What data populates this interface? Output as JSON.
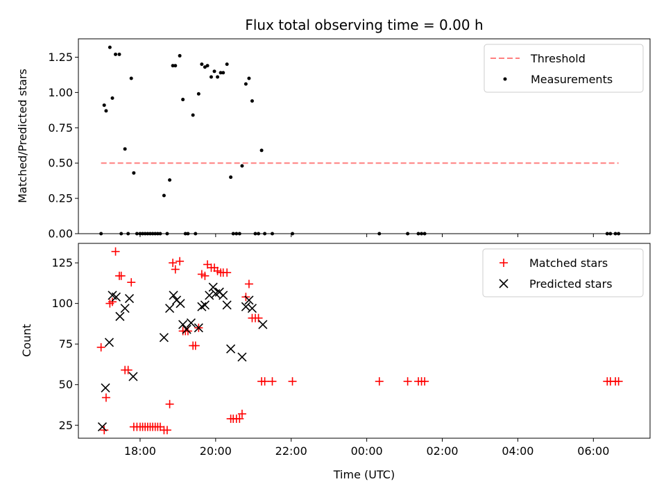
{
  "chart_data": [
    {
      "type": "scatter",
      "title": "Flux total observing time = 0.00 h",
      "ylabel": "Matched/Predicted stars",
      "xlabel": "",
      "ylim": [
        0,
        1.38
      ],
      "xlim": [
        "16:22",
        "07:30"
      ],
      "yticks": [
        "0.00",
        "0.25",
        "0.50",
        "0.75",
        "1.00",
        "1.25"
      ],
      "ytick_values": [
        0,
        0.25,
        0.5,
        0.75,
        1.0,
        1.25
      ],
      "legend": {
        "placement": "upper right",
        "entries": [
          "Threshold",
          "Measurements"
        ]
      },
      "threshold": {
        "name": "Threshold",
        "value": 0.5,
        "x_start": "16:58",
        "x_end": "06:40",
        "color": "#ff7f7f"
      },
      "series": [
        {
          "name": "Measurements",
          "color": "#000000",
          "points": [
            [
              "16:58",
              0.0
            ],
            [
              "17:03",
              0.91
            ],
            [
              "17:06",
              0.87
            ],
            [
              "17:12",
              1.32
            ],
            [
              "17:16",
              0.96
            ],
            [
              "17:21",
              1.27
            ],
            [
              "17:27",
              1.27
            ],
            [
              "17:30",
              0.0
            ],
            [
              "17:36",
              0.6
            ],
            [
              "17:41",
              0.0
            ],
            [
              "17:46",
              1.1
            ],
            [
              "17:50",
              0.43
            ],
            [
              "17:55",
              0.0
            ],
            [
              "18:00",
              0.0
            ],
            [
              "18:04",
              0.0
            ],
            [
              "18:08",
              0.0
            ],
            [
              "18:12",
              0.0
            ],
            [
              "18:16",
              0.0
            ],
            [
              "18:20",
              0.0
            ],
            [
              "18:24",
              0.0
            ],
            [
              "18:28",
              0.0
            ],
            [
              "18:32",
              0.0
            ],
            [
              "18:38",
              0.27
            ],
            [
              "18:43",
              0.0
            ],
            [
              "18:47",
              0.38
            ],
            [
              "18:52",
              1.19
            ],
            [
              "18:56",
              1.19
            ],
            [
              "19:03",
              1.26
            ],
            [
              "19:08",
              0.95
            ],
            [
              "19:12",
              0.0
            ],
            [
              "19:16",
              0.0
            ],
            [
              "19:24",
              0.84
            ],
            [
              "19:28",
              0.0
            ],
            [
              "19:33",
              0.99
            ],
            [
              "19:38",
              1.2
            ],
            [
              "19:43",
              1.18
            ],
            [
              "19:47",
              1.19
            ],
            [
              "19:53",
              1.11
            ],
            [
              "19:58",
              1.15
            ],
            [
              "20:03",
              1.11
            ],
            [
              "20:08",
              1.14
            ],
            [
              "20:12",
              1.14
            ],
            [
              "20:18",
              1.2
            ],
            [
              "20:24",
              0.4
            ],
            [
              "20:28",
              0.0
            ],
            [
              "20:33",
              0.0
            ],
            [
              "20:38",
              0.0
            ],
            [
              "20:42",
              0.48
            ],
            [
              "20:48",
              1.06
            ],
            [
              "20:53",
              1.1
            ],
            [
              "20:58",
              0.94
            ],
            [
              "21:03",
              0.0
            ],
            [
              "21:08",
              0.0
            ],
            [
              "21:13",
              0.59
            ],
            [
              "21:18",
              0.0
            ],
            [
              "21:30",
              0.0
            ],
            [
              "22:02",
              0.0
            ],
            [
              "00:20",
              0.0
            ],
            [
              "01:05",
              0.0
            ],
            [
              "01:22",
              0.0
            ],
            [
              "01:27",
              0.0
            ],
            [
              "01:32",
              0.0
            ],
            [
              "06:22",
              0.0
            ],
            [
              "06:27",
              0.0
            ],
            [
              "06:35",
              0.0
            ],
            [
              "06:40",
              0.0
            ]
          ]
        }
      ]
    },
    {
      "type": "scatter",
      "title": "",
      "ylabel": "Count",
      "xlabel": "Time (UTC)",
      "ylim": [
        17,
        137
      ],
      "xlim": [
        "16:22",
        "07:30"
      ],
      "yticks": [
        "25",
        "50",
        "75",
        "100",
        "125"
      ],
      "ytick_values": [
        25,
        50,
        75,
        100,
        125
      ],
      "xticks": [
        "18:00",
        "20:00",
        "22:00",
        "00:00",
        "02:00",
        "04:00",
        "06:00"
      ],
      "legend": {
        "placement": "upper right",
        "entries": [
          "Matched stars",
          "Predicted stars"
        ]
      },
      "series": [
        {
          "name": "Matched stars",
          "marker": "plus",
          "color": "#ff0000",
          "points": [
            [
              "16:58",
              73
            ],
            [
              "17:03",
              22
            ],
            [
              "17:06",
              42
            ],
            [
              "17:12",
              100
            ],
            [
              "17:16",
              101
            ],
            [
              "17:21",
              132
            ],
            [
              "17:27",
              117
            ],
            [
              "17:30",
              117
            ],
            [
              "17:36",
              59
            ],
            [
              "17:41",
              59
            ],
            [
              "17:46",
              113
            ],
            [
              "17:50",
              24
            ],
            [
              "17:55",
              24
            ],
            [
              "18:00",
              24
            ],
            [
              "18:04",
              24
            ],
            [
              "18:08",
              24
            ],
            [
              "18:12",
              24
            ],
            [
              "18:16",
              24
            ],
            [
              "18:20",
              24
            ],
            [
              "18:24",
              24
            ],
            [
              "18:28",
              24
            ],
            [
              "18:32",
              24
            ],
            [
              "18:38",
              22
            ],
            [
              "18:43",
              22
            ],
            [
              "18:47",
              38
            ],
            [
              "18:52",
              125
            ],
            [
              "18:56",
              121
            ],
            [
              "19:03",
              126
            ],
            [
              "19:08",
              83
            ],
            [
              "19:12",
              83
            ],
            [
              "19:16",
              83
            ],
            [
              "19:24",
              74
            ],
            [
              "19:28",
              74
            ],
            [
              "19:33",
              85
            ],
            [
              "19:38",
              118
            ],
            [
              "19:43",
              117
            ],
            [
              "19:47",
              124
            ],
            [
              "19:53",
              122
            ],
            [
              "19:58",
              122
            ],
            [
              "20:03",
              120
            ],
            [
              "20:08",
              119
            ],
            [
              "20:12",
              119
            ],
            [
              "20:18",
              119
            ],
            [
              "20:24",
              29
            ],
            [
              "20:28",
              29
            ],
            [
              "20:33",
              29
            ],
            [
              "20:38",
              29
            ],
            [
              "20:42",
              32
            ],
            [
              "20:48",
              104
            ],
            [
              "20:53",
              112
            ],
            [
              "20:58",
              91
            ],
            [
              "21:03",
              91
            ],
            [
              "21:08",
              91
            ],
            [
              "21:13",
              52
            ],
            [
              "21:18",
              52
            ],
            [
              "21:30",
              52
            ],
            [
              "22:02",
              52
            ],
            [
              "00:20",
              52
            ],
            [
              "01:05",
              52
            ],
            [
              "01:22",
              52
            ],
            [
              "01:27",
              52
            ],
            [
              "01:32",
              52
            ],
            [
              "06:22",
              52
            ],
            [
              "06:27",
              52
            ],
            [
              "06:35",
              52
            ],
            [
              "06:40",
              52
            ]
          ]
        },
        {
          "name": "Predicted stars",
          "marker": "x",
          "color": "#000000",
          "points": [
            [
              "17:00",
              24
            ],
            [
              "17:05",
              48
            ],
            [
              "17:11",
              76
            ],
            [
              "17:16",
              105
            ],
            [
              "17:22",
              104
            ],
            [
              "17:28",
              92
            ],
            [
              "17:36",
              97
            ],
            [
              "17:43",
              103
            ],
            [
              "17:49",
              55
            ],
            [
              "18:38",
              79
            ],
            [
              "18:47",
              97
            ],
            [
              "18:53",
              105
            ],
            [
              "18:58",
              102
            ],
            [
              "19:04",
              100
            ],
            [
              "19:08",
              87
            ],
            [
              "19:14",
              84
            ],
            [
              "19:21",
              88
            ],
            [
              "19:33",
              85
            ],
            [
              "19:38",
              98
            ],
            [
              "19:43",
              99
            ],
            [
              "19:50",
              105
            ],
            [
              "19:56",
              110
            ],
            [
              "20:00",
              106
            ],
            [
              "20:06",
              107
            ],
            [
              "20:12",
              105
            ],
            [
              "20:18",
              99
            ],
            [
              "20:24",
              72
            ],
            [
              "20:42",
              67
            ],
            [
              "20:48",
              98
            ],
            [
              "20:53",
              102
            ],
            [
              "20:58",
              97
            ],
            [
              "21:15",
              87
            ]
          ]
        }
      ]
    }
  ]
}
